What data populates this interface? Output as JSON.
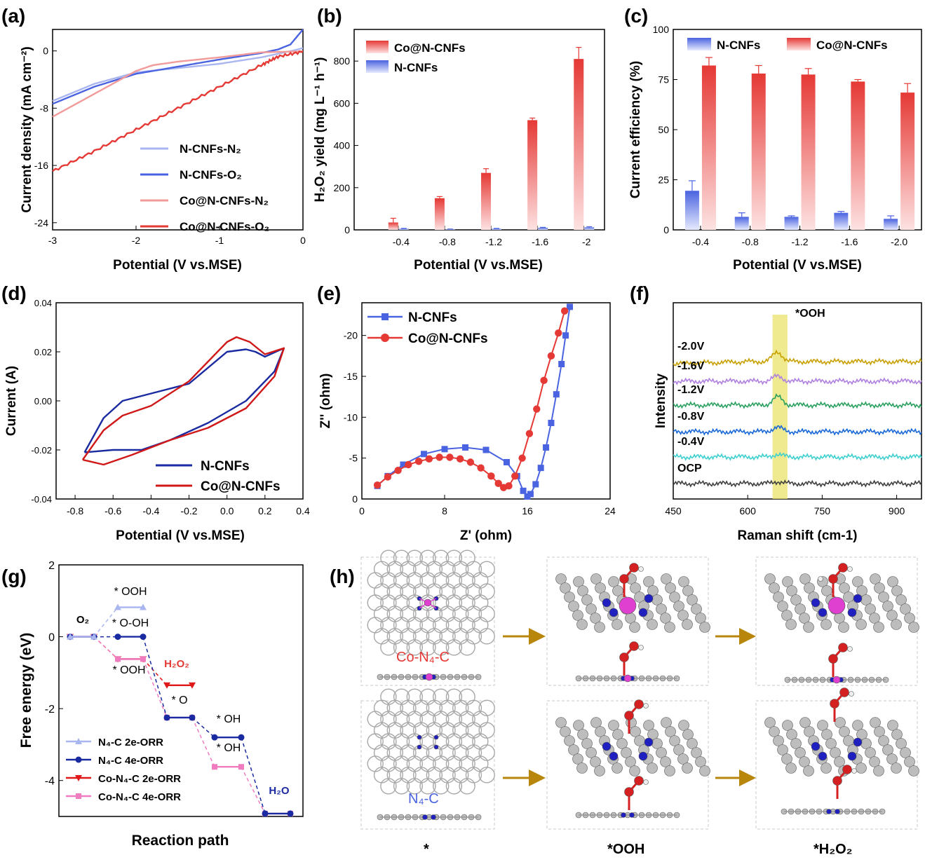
{
  "colors": {
    "light_blue": "#a9b6f0",
    "blue": "#4a63e0",
    "light_red": "#f29b9b",
    "red": "#e53935",
    "navy": "#1a2aa0",
    "pink": "#f07cc0",
    "co": "#e040d0",
    "n": "#2020c0",
    "o": "#d42020",
    "c": "#a8a8a8",
    "arrow": "#b8860b"
  },
  "chart_data": [
    {
      "panel": "(a)",
      "type": "line",
      "xlabel": "Potential (V vs.MSE)",
      "ylabel": "Current density (mA cm⁻²)",
      "xlim": [
        -3,
        0
      ],
      "ylim": [
        -25,
        3
      ],
      "xticks": [
        "-3",
        "-2",
        "-1",
        "0"
      ],
      "yticks": [
        "-24",
        "-16",
        "-8",
        "0"
      ],
      "series": [
        {
          "name": "N-CNFs-N₂",
          "x": [
            -3,
            -2.5,
            -2,
            -1.5,
            -1,
            -0.5,
            -0.3,
            -0.1,
            0
          ],
          "y": [
            -7,
            -4.6,
            -3,
            -2.4,
            -1.8,
            -0.9,
            -0.4,
            0.1,
            0.4
          ]
        },
        {
          "name": "N-CNFs-O₂",
          "x": [
            -3,
            -2.5,
            -2,
            -1.5,
            -1,
            -0.5,
            -0.3,
            -0.15,
            0
          ],
          "y": [
            -7.4,
            -5,
            -3.2,
            -2.2,
            -1.2,
            -0.3,
            0.2,
            0.9,
            3
          ]
        },
        {
          "name": "Co@N-CNFs-N₂",
          "x": [
            -3,
            -2.5,
            -2,
            -1.8,
            -1.5,
            -1,
            -0.5,
            0
          ],
          "y": [
            -9.2,
            -6,
            -2.8,
            -2,
            -1.5,
            -0.9,
            -0.2,
            -0.05
          ]
        },
        {
          "name": "Co@N-CNFs-O₂",
          "x": [
            -3,
            -2.5,
            -2,
            -1.5,
            -1,
            -0.5,
            -0.3,
            0
          ],
          "y": [
            -16.8,
            -14,
            -11,
            -8,
            -5,
            -2,
            -0.8,
            -0.1
          ]
        }
      ]
    },
    {
      "panel": "(b)",
      "type": "bar",
      "xlabel": "Potential (V vs.MSE)",
      "ylabel": "H₂O₂ yield (mg L⁻¹ h⁻¹)",
      "categories": [
        "-0.4",
        "-0.8",
        "-1.2",
        "-1.6",
        "-2"
      ],
      "ylim": [
        0,
        950
      ],
      "yticks": [
        "0",
        "200",
        "400",
        "600",
        "800"
      ],
      "series": [
        {
          "name": "Co@N-CNFs",
          "values": [
            35,
            150,
            270,
            520,
            810
          ],
          "errors": [
            20,
            8,
            20,
            10,
            55
          ]
        },
        {
          "name": "N-CNFs",
          "values": [
            5,
            3,
            5,
            10,
            12
          ],
          "errors": [
            2,
            1,
            2,
            2,
            3
          ]
        }
      ]
    },
    {
      "panel": "(c)",
      "type": "bar",
      "xlabel": "Potential (V vs.MSE)",
      "ylabel": "Current efficiency (%)",
      "categories": [
        "-0.4",
        "-0.8",
        "-1.2",
        "-1.6",
        "-2.0"
      ],
      "ylim": [
        0,
        100
      ],
      "yticks": [
        "0",
        "25",
        "50",
        "75",
        "100"
      ],
      "series": [
        {
          "name": "N-CNFs",
          "values": [
            19.5,
            6.5,
            6.5,
            8.5,
            5.5
          ],
          "errors": [
            5,
            2,
            0.5,
            0.7,
            1.5
          ]
        },
        {
          "name": "Co@N-CNFs",
          "values": [
            82,
            78,
            77.5,
            74,
            68.5
          ],
          "errors": [
            4,
            4,
            3,
            1,
            4.5
          ]
        }
      ]
    },
    {
      "panel": "(d)",
      "type": "line",
      "xlabel": "Potential (V vs.MSE)",
      "ylabel": "Current (A)",
      "xlim": [
        -0.9,
        0.4
      ],
      "ylim": [
        -0.04,
        0.04
      ],
      "xticks": [
        "-0.8",
        "-0.6",
        "-0.4",
        "-0.2",
        "0.0",
        "0.2",
        "0.4"
      ],
      "yticks": [
        "-0.04",
        "-0.02",
        "0.00",
        "0.02",
        "0.04"
      ],
      "series": [
        {
          "name": "N-CNFs",
          "x": [
            -0.75,
            -0.65,
            -0.55,
            -0.4,
            -0.2,
            0,
            0.1,
            0.15,
            0.2,
            0.3,
            0.25,
            0.1,
            -0.1,
            -0.3,
            -0.45,
            -0.6,
            -0.75
          ],
          "y": [
            -0.021,
            -0.007,
            0,
            0.003,
            0.007,
            0.02,
            0.021,
            0.02,
            0.018,
            0.0215,
            0.012,
            0.0,
            -0.009,
            -0.016,
            -0.02,
            -0.02,
            -0.021
          ]
        },
        {
          "name": "Co@N-CNFs",
          "x": [
            -0.76,
            -0.65,
            -0.55,
            -0.4,
            -0.2,
            0,
            0.05,
            0.12,
            0.2,
            0.3,
            0.25,
            0.1,
            -0.1,
            -0.3,
            -0.5,
            -0.65,
            -0.76
          ],
          "y": [
            -0.024,
            -0.012,
            -0.006,
            -0.002,
            0.008,
            0.024,
            0.026,
            0.024,
            0.019,
            0.0215,
            0.01,
            -0.003,
            -0.011,
            -0.016,
            -0.022,
            -0.026,
            -0.024
          ]
        }
      ]
    },
    {
      "panel": "(e)",
      "type": "scatter",
      "xlabel": "Z' (ohm)",
      "ylabel": "Z'' (ohm)",
      "xlim": [
        0,
        24
      ],
      "ylim": [
        0,
        -24
      ],
      "xticks": [
        "0",
        "8",
        "16",
        "24"
      ],
      "yticks": [
        "0",
        "-5",
        "-10",
        "-15",
        "-20"
      ],
      "series": [
        {
          "name": "N-CNFs",
          "x": [
            1.5,
            2.5,
            4,
            6,
            8,
            10,
            12,
            14,
            15,
            15.6,
            16,
            16.3,
            16.8,
            17.3,
            17.8,
            18.3,
            18.8,
            19.3,
            19.7,
            20.1
          ],
          "y": [
            -1.6,
            -2.8,
            -4.2,
            -5.5,
            -6.1,
            -6.3,
            -6,
            -4.5,
            -2.8,
            -1,
            -0.3,
            -0.6,
            -1.8,
            -3.8,
            -6.3,
            -9.3,
            -12.8,
            -16.5,
            -20,
            -23.5
          ]
        },
        {
          "name": "Co@N-CNFs",
          "x": [
            1.5,
            2.5,
            3.5,
            4.5,
            5.5,
            6.5,
            7.5,
            8.5,
            9.5,
            10.5,
            11.5,
            12.5,
            13.2,
            13.7,
            14.2,
            14.8,
            15.5,
            16.2,
            16.9,
            17.6,
            18.3,
            19,
            19.6
          ],
          "y": [
            -1.7,
            -2.7,
            -3.5,
            -4.2,
            -4.6,
            -4.9,
            -5.1,
            -5.1,
            -4.9,
            -4.5,
            -3.8,
            -2.8,
            -1.9,
            -1.4,
            -1.6,
            -2.8,
            -5,
            -8,
            -11,
            -14.5,
            -17.5,
            -20.3,
            -23
          ]
        }
      ]
    },
    {
      "panel": "(f)",
      "type": "line",
      "xlabel": "Raman shift (cm-1)",
      "ylabel": "Intensity",
      "xticks": [
        "450",
        "600",
        "750",
        "900"
      ],
      "annotation": "*OOH",
      "series": [
        {
          "name": "-2.0V",
          "offset": 6,
          "peak": 1.5
        },
        {
          "name": "-1.6V",
          "offset": 5,
          "peak": 0.8
        },
        {
          "name": "-1.2V",
          "offset": 4,
          "peak": 1.3
        },
        {
          "name": "-0.8V",
          "offset": 3,
          "peak": 0.7
        },
        {
          "name": "-0.4V",
          "offset": 2,
          "peak": 0.4
        },
        {
          "name": "OCP",
          "offset": 1,
          "peak": 0.3
        }
      ]
    },
    {
      "panel": "(g)",
      "type": "line",
      "xlabel": "Reaction path",
      "ylabel": "Free energy (eV)",
      "ylim": [
        -5,
        2
      ],
      "yticks": [
        "2",
        "0",
        "-2",
        "-4"
      ],
      "series": [
        {
          "name": "N₄-C 2e-ORR",
          "levels": [
            0,
            0.82
          ]
        },
        {
          "name": "N₄-C 4e-ORR",
          "levels": [
            0,
            0,
            -2.25,
            -2.8,
            -4.92
          ]
        },
        {
          "name": "Co-N₄-C 2e-ORR",
          "levels": [
            0,
            -0.62,
            -1.35
          ]
        },
        {
          "name": "Co-N₄-C 4e-ORR",
          "levels": [
            0,
            -0.62,
            -2.25,
            -3.62,
            -4.92
          ]
        }
      ],
      "annotations": {
        "o2": "O₂",
        "ooh_top": "* OOH",
        "o_oh": "* O-OH",
        "ooh_low": "* OOH",
        "h2o2": "H₂O₂",
        "o": "* O",
        "oh1": "* OH",
        "oh2": "* OH",
        "h2o": "H₂O"
      }
    }
  ],
  "panels": {
    "a": "(a)",
    "b": "(b)",
    "c": "(c)",
    "d": "(d)",
    "e": "(e)",
    "f": "(f)",
    "g": "(g)",
    "h": "(h)"
  },
  "h": {
    "co_label": "Co-N₄-C",
    "n_label": "N₄-C",
    "col1": "*",
    "col2": "*OOH",
    "col3": "*H₂O₂"
  }
}
